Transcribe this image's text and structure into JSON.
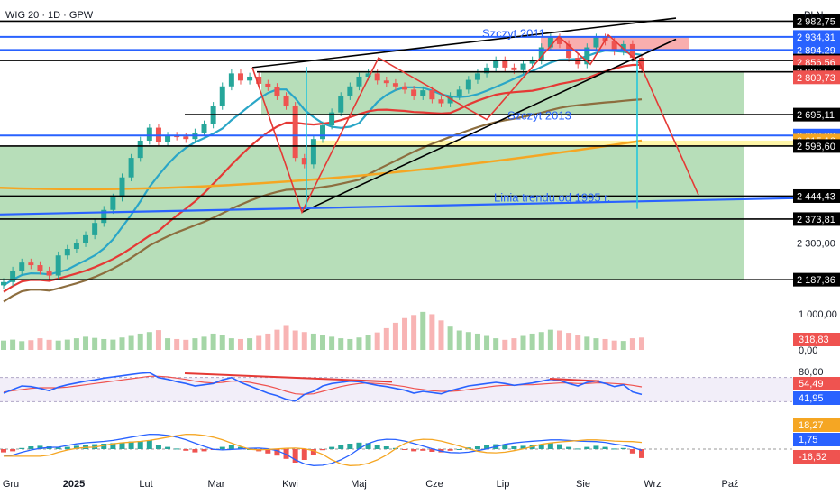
{
  "header": {
    "symbol_title": "WIG 20 · 1D · GPW",
    "currency": "PLN"
  },
  "colors": {
    "up": "#26a69a",
    "down": "#ef5350",
    "zone_green": "#a5d6a7",
    "zone_red": "#f8a5a5",
    "zone_yellow": "#fff59d",
    "blue_line": "#2962ff",
    "ma_short": "#2aa6c7",
    "ma_mid": "#e53935",
    "ma_long": "#8d6e3f",
    "ma_200": "#f5a623",
    "pattern": "#e53935",
    "rsi": "#2962ff",
    "rsi_signal": "#ef5350"
  },
  "chart_data": [
    {
      "type": "candlestick",
      "title": "WIG 20 · 1D · GPW",
      "x_ticks": [
        "Gru",
        "2025",
        "Lut",
        "Mar",
        "Kwi",
        "Maj",
        "Cze",
        "Lip",
        "Sie",
        "Wrz",
        "Paź"
      ],
      "y_ticks": [
        "2 300,00"
      ],
      "ylim": [
        2160,
        3020
      ],
      "price_levels": [
        {
          "label": "2 982,75",
          "value": 2982.75,
          "kind": "black"
        },
        {
          "label": "2 934,31",
          "value": 2934.31,
          "kind": "blue"
        },
        {
          "label": "2 894,29",
          "value": 2894.29,
          "kind": "blue"
        },
        {
          "label": "2 861,52",
          "value": 2861.52,
          "kind": "black"
        },
        {
          "label": "2 856,56",
          "value": 2856.56,
          "kind": "red"
        },
        {
          "label": "2 826,57",
          "value": 2826.57,
          "kind": "black"
        },
        {
          "label": "2 809,73",
          "value": 2809.73,
          "kind": "red"
        },
        {
          "label": "2 695,11",
          "value": 2695.11,
          "kind": "black"
        },
        {
          "label": "2 630,83",
          "value": 2630.83,
          "kind": "blue"
        },
        {
          "label": "2 615,16",
          "value": 2615.16,
          "kind": "orange"
        },
        {
          "label": "2 598,60",
          "value": 2598.6,
          "kind": "black"
        },
        {
          "label": "2 444,43",
          "value": 2444.43,
          "kind": "black"
        },
        {
          "label": "2 373,81",
          "value": 2373.81,
          "kind": "black"
        },
        {
          "label": "2 187,36",
          "value": 2187.36,
          "kind": "black"
        }
      ],
      "annotations": [
        "Szczyt 2011",
        "Szczyt 2013",
        "Linia trendu od 1995 r."
      ],
      "close": [
        2180,
        2215,
        2240,
        2232,
        2215,
        2200,
        2262,
        2282,
        2300,
        2324,
        2362,
        2402,
        2440,
        2502,
        2562,
        2615,
        2655,
        2612,
        2630,
        2628,
        2620,
        2640,
        2665,
        2722,
        2782,
        2822,
        2800,
        2812,
        2790,
        2780,
        2752,
        2722,
        2562,
        2542,
        2620,
        2662,
        2702,
        2752,
        2782,
        2812,
        2822,
        2800,
        2792,
        2782,
        2772,
        2752,
        2770,
        2742,
        2730,
        2752,
        2772,
        2802,
        2822,
        2840,
        2862,
        2840,
        2832,
        2852,
        2862,
        2902,
        2932,
        2912,
        2870,
        2850,
        2902,
        2932,
        2920,
        2890,
        2912,
        2870,
        2835
      ]
    },
    {
      "type": "bar",
      "title": "Volume",
      "y_ticks": [
        "1 000,00",
        "0,00"
      ],
      "last_value": "318,83",
      "values": [
        240,
        265,
        225,
        250,
        300,
        260,
        240,
        265,
        300,
        340,
        310,
        280,
        265,
        320,
        360,
        420,
        460,
        510,
        300,
        280,
        260,
        300,
        340,
        420,
        380,
        300,
        280,
        300,
        360,
        420,
        520,
        640,
        500,
        460,
        420,
        380,
        340,
        300,
        280,
        320,
        380,
        450,
        560,
        700,
        820,
        900,
        980,
        920,
        760,
        600,
        500,
        460,
        420,
        360,
        300,
        260,
        300,
        360,
        420,
        460,
        520,
        500,
        440,
        380,
        340,
        300,
        280,
        240,
        230,
        300,
        318.83
      ]
    },
    {
      "type": "line",
      "title": "RSI",
      "y_ticks": [
        "80,00"
      ],
      "last_values": [
        "54,49",
        "41,95"
      ],
      "values": [
        44,
        50,
        56,
        55,
        52,
        48,
        54,
        58,
        61,
        64,
        66,
        69,
        71,
        73,
        75,
        77,
        78,
        70,
        67,
        63,
        60,
        56,
        58,
        60,
        66,
        70,
        62,
        56,
        50,
        44,
        40,
        34,
        31,
        42,
        47,
        56,
        60,
        62,
        64,
        63,
        60,
        57,
        55,
        52,
        49,
        44,
        47,
        45,
        43,
        48,
        52,
        56,
        58,
        60,
        62,
        60,
        57,
        59,
        61,
        64,
        67,
        65,
        60,
        56,
        62,
        64,
        60,
        55,
        58,
        46,
        41.95
      ],
      "signal": [
        46,
        48,
        50,
        52,
        53,
        53,
        53,
        54,
        56,
        58,
        60,
        62,
        64,
        66,
        68,
        70,
        72,
        72,
        71,
        69,
        67,
        64,
        62,
        61,
        62,
        64,
        64,
        62,
        59,
        56,
        52,
        47,
        43,
        42,
        43,
        47,
        51,
        55,
        58,
        60,
        61,
        60,
        59,
        57,
        55,
        52,
        50,
        48,
        47,
        47,
        48,
        50,
        52,
        54,
        56,
        57,
        57,
        58,
        58,
        59,
        60,
        61,
        61,
        60,
        60,
        61,
        61,
        60,
        59,
        57,
        54.49
      ]
    },
    {
      "type": "bar",
      "title": "MACD",
      "last_values": [
        "18,27",
        "1,75",
        "-16,52"
      ],
      "histogram": [
        -6,
        -4,
        2,
        5,
        6,
        5,
        3,
        4,
        6,
        8,
        9,
        10,
        11,
        12,
        14,
        15,
        16,
        8,
        4,
        1,
        -3,
        -6,
        -4,
        -1,
        4,
        7,
        4,
        0,
        -4,
        -8,
        -12,
        -18,
        -25,
        -20,
        -10,
        -2,
        4,
        8,
        10,
        12,
        11,
        8,
        5,
        2,
        -1,
        -4,
        -3,
        -5,
        -6,
        -3,
        0,
        3,
        5,
        7,
        9,
        7,
        5,
        6,
        7,
        9,
        11,
        9,
        4,
        1,
        4,
        6,
        4,
        1,
        2,
        -8,
        -16.52
      ]
    }
  ]
}
